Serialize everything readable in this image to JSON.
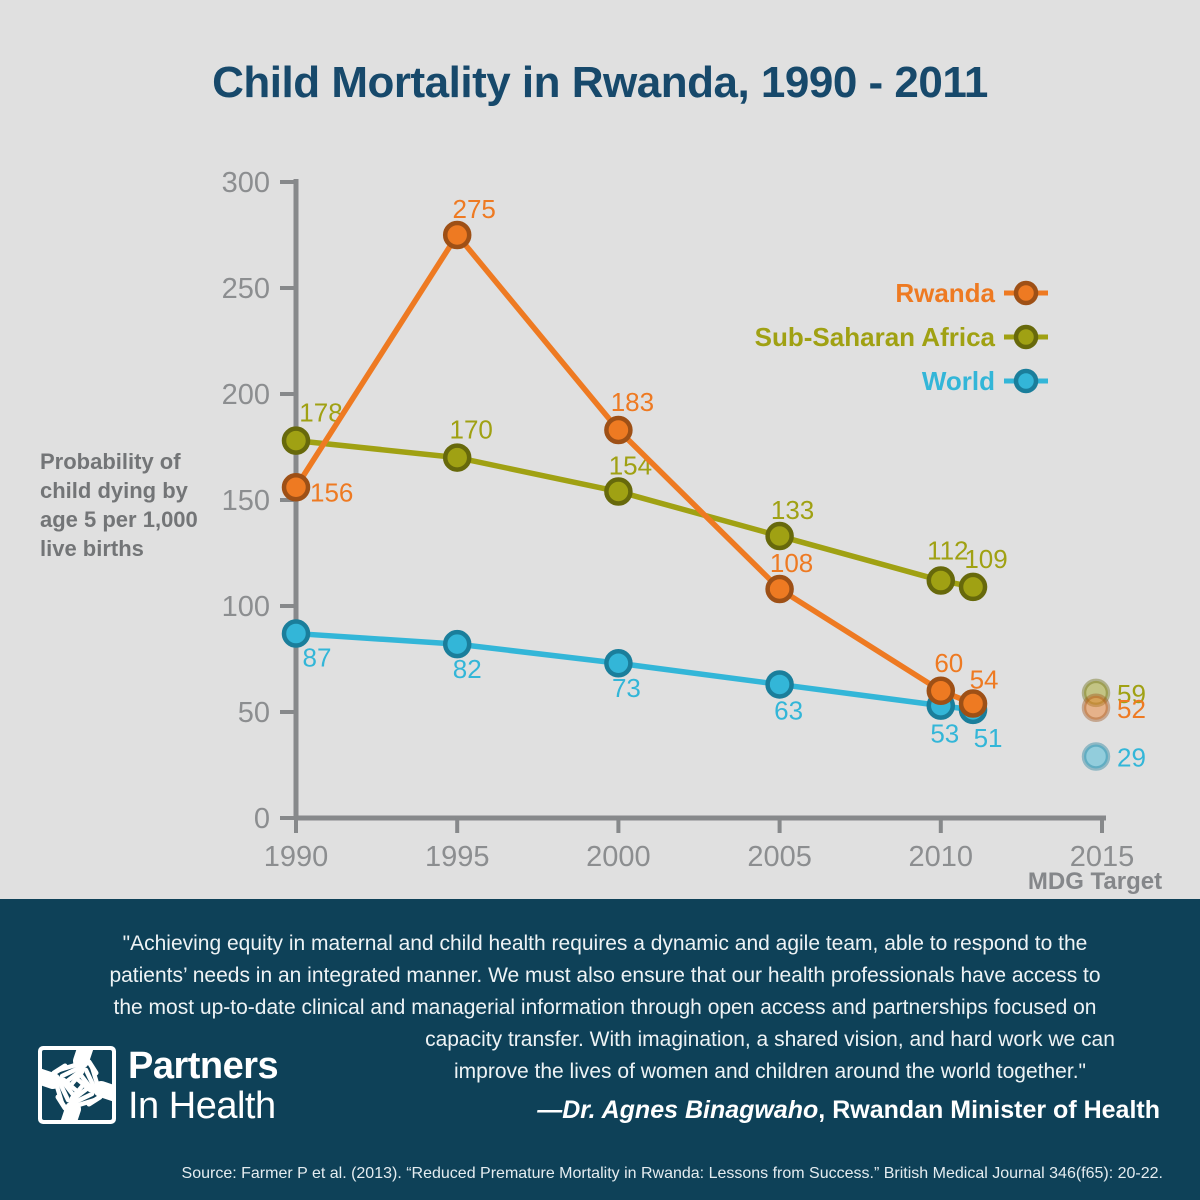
{
  "title": "Child Mortality in Rwanda, 1990 - 2011",
  "ylabel_lines": [
    "Probability of",
    "child dying by",
    "age 5 per 1,000",
    "live births"
  ],
  "colors": {
    "background": "#e0e0e0",
    "panel_navy": "#0e4158",
    "title_navy": "#17496b",
    "axis_gray": "#87898b",
    "tick_label_gray": "#8c8e90",
    "ylabel_gray": "#737577",
    "rwanda_orange": "#ee7a22",
    "africa_olive": "#a0a113",
    "world_cyan": "#33b6d8"
  },
  "chart_data": {
    "type": "line",
    "x": [
      1990,
      1995,
      2000,
      2005,
      2010,
      2011
    ],
    "series": [
      {
        "name": "Rwanda",
        "values": [
          156,
          275,
          183,
          108,
          60,
          54
        ],
        "color": "#ee7a22",
        "marker_stroke": "#9e5016"
      },
      {
        "name": "Sub-Saharan Africa",
        "values": [
          178,
          170,
          154,
          133,
          112,
          109
        ],
        "color": "#a0a113",
        "marker_stroke": "#67690b"
      },
      {
        "name": "World",
        "values": [
          87,
          82,
          73,
          63,
          53,
          51
        ],
        "color": "#33b6d8",
        "marker_stroke": "#1a7e9b"
      }
    ],
    "mdg_x": 2015,
    "mdg_targets": [
      {
        "series": "Sub-Saharan Africa",
        "value": 59
      },
      {
        "series": "Rwanda",
        "value": 52
      },
      {
        "series": "World",
        "value": 29
      }
    ],
    "xlim": [
      1990,
      2015
    ],
    "ylim": [
      0,
      300
    ],
    "yticks": [
      0,
      50,
      100,
      150,
      200,
      250,
      300
    ],
    "xticks": [
      1990,
      1995,
      2000,
      2005,
      2010,
      2015
    ],
    "ylabel": "Probability of child dying by age 5 per 1,000 live births",
    "legend_position": "upper right",
    "grid": false,
    "mdg_caption": "MDG Target"
  },
  "bottom": {
    "quote_lines": [
      "\"Achieving equity in maternal and child health requires a dynamic and agile team, able to respond to the",
      "patients’ needs in an integrated manner. We must also ensure that our health professionals have access to",
      "the most up-to-date clinical and managerial information through open access and partnerships focused on",
      "capacity transfer. With imagination, a shared vision, and hard work we can",
      "improve the lives of women and children around the world together.\""
    ],
    "attribution_name": "—Dr. Agnes Binagwaho",
    "attribution_role": ", Rwandan Minister of Health",
    "source": "Source: Farmer P et al. (2013). “Reduced Premature Mortality in Rwanda: Lessons from Success.” British Medical Journal 346(f65): 20-22."
  },
  "logo": {
    "line1": "Partners",
    "line2": "In Health"
  }
}
